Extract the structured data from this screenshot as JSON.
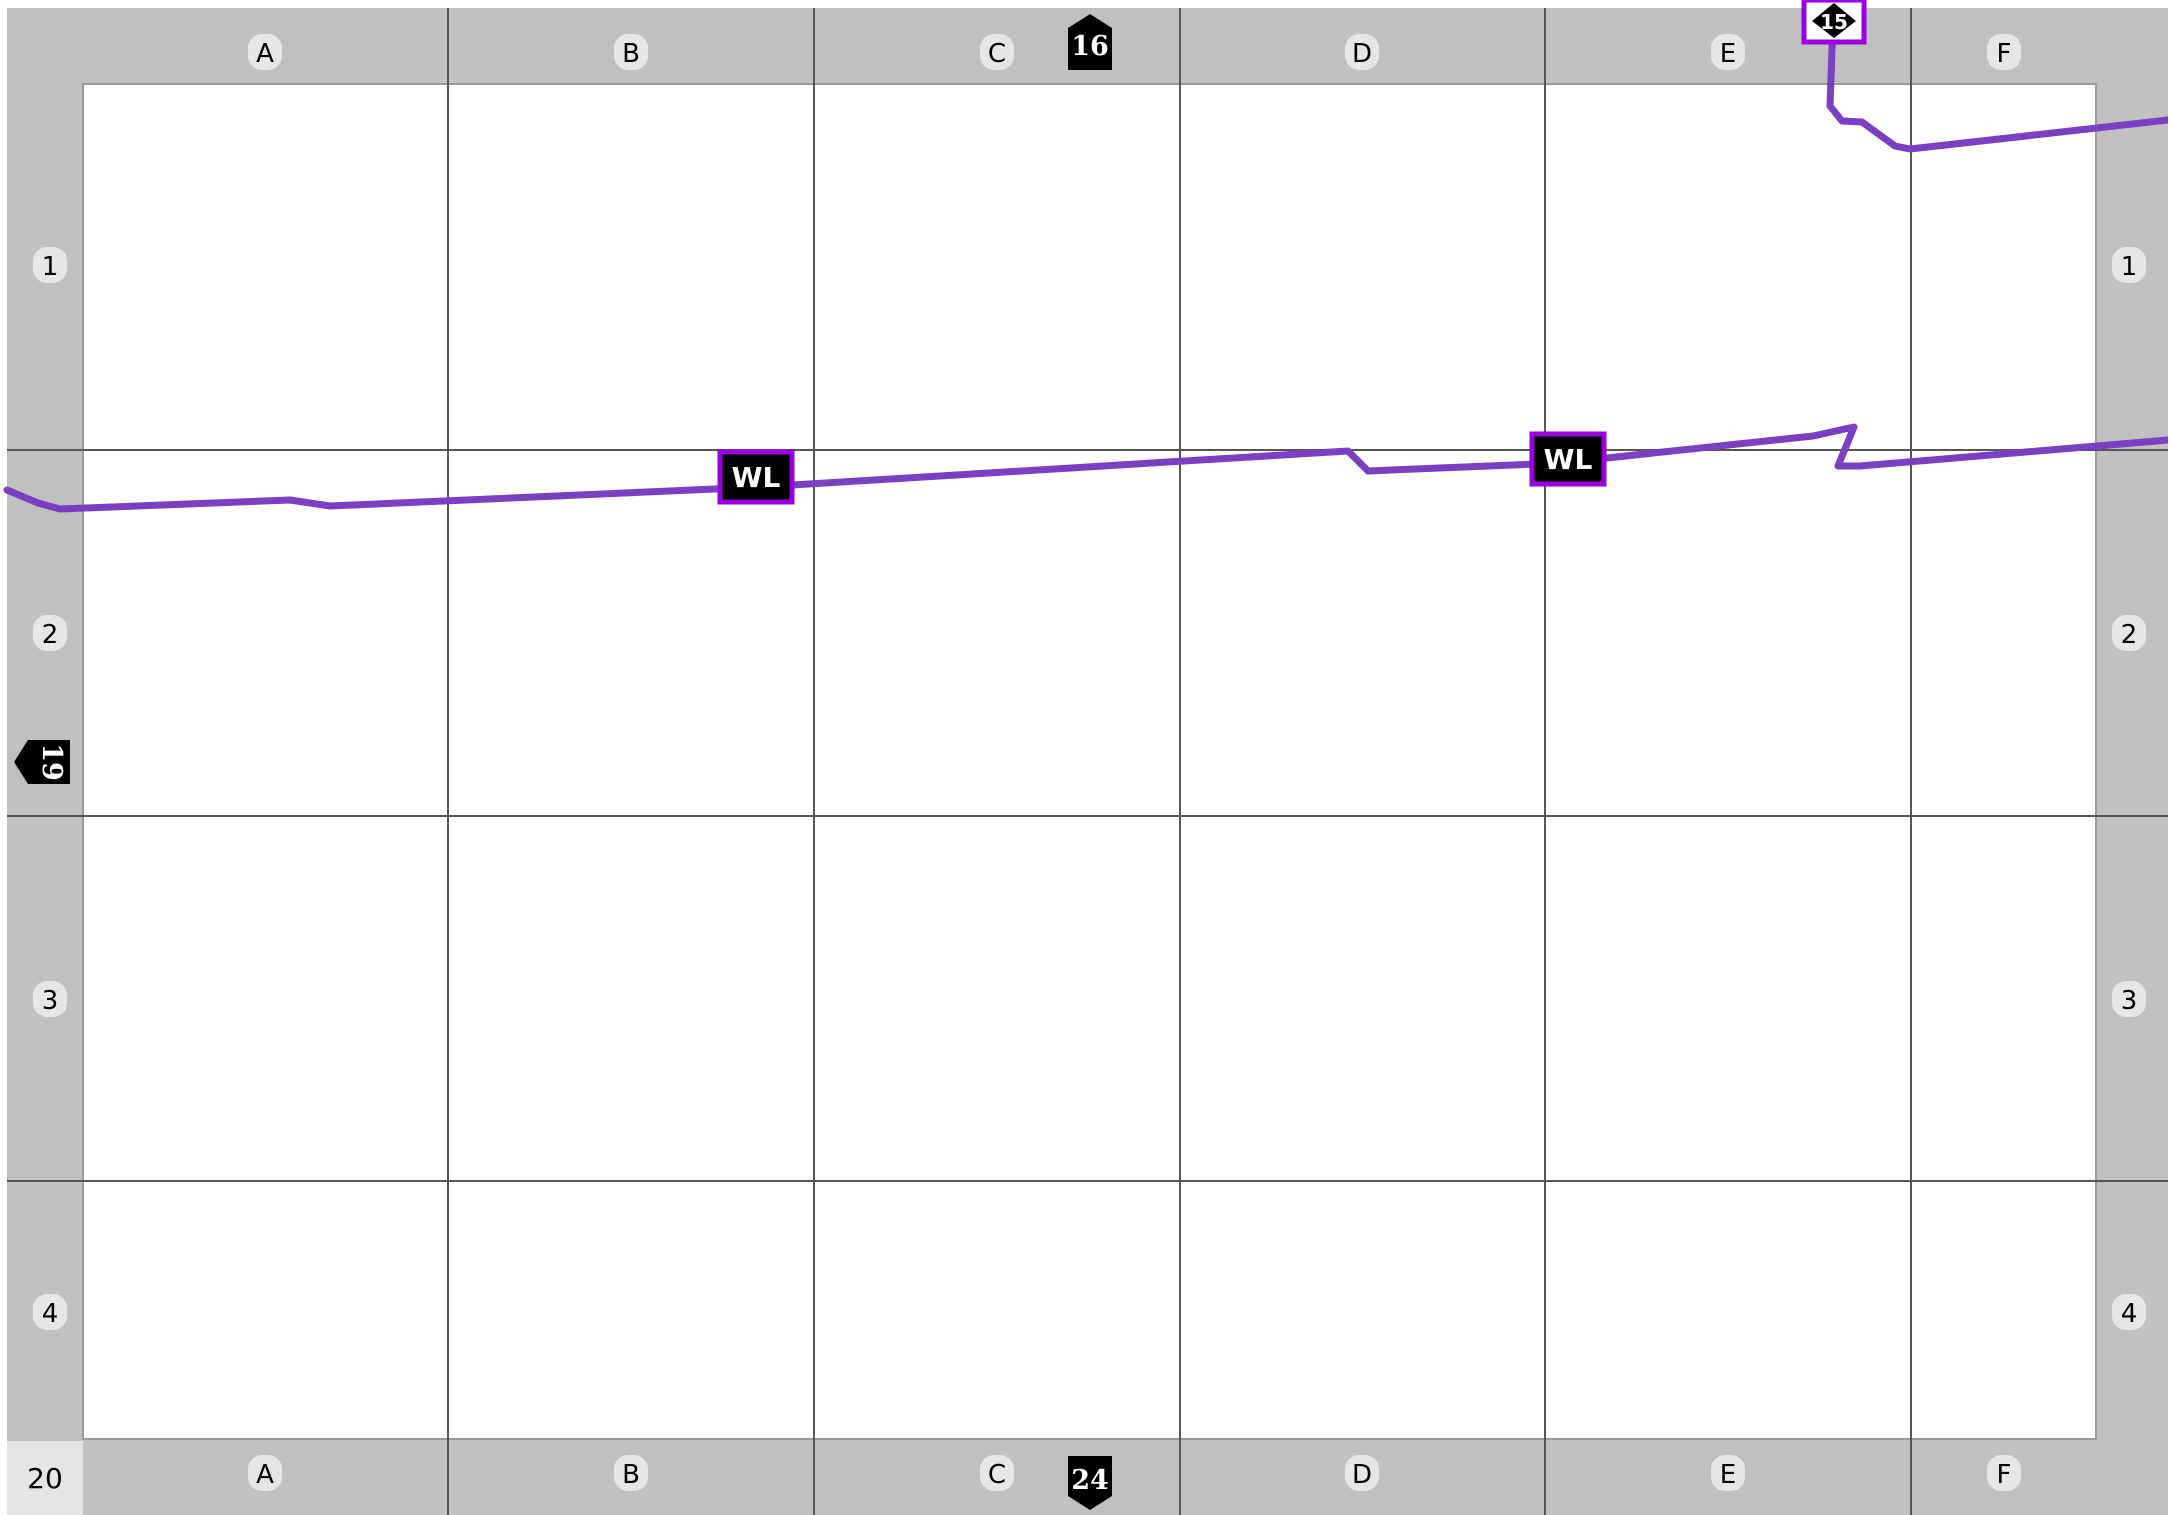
{
  "page_number": "20",
  "grid": {
    "columns": [
      "A",
      "B",
      "C",
      "D",
      "E",
      "F"
    ],
    "rows": [
      "1",
      "2",
      "3",
      "4"
    ]
  },
  "adjacent_pages": {
    "top": "16",
    "left": "19",
    "bottom": "24"
  },
  "route_markers": {
    "wl_label": "WL",
    "highway_shield": "15"
  },
  "colors": {
    "frame": "#c0c0c0",
    "route": "#7b3fc4",
    "marker_border": "#9a00e0",
    "grid_line": "#555555",
    "label_pill": "#e6e6e6"
  }
}
